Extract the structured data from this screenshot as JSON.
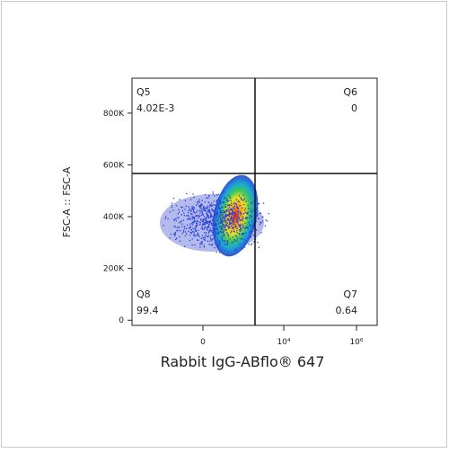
{
  "chart_data": {
    "type": "density-scatter",
    "x_label": "Rabbit IgG-ABflo® 647",
    "y_label": "FSC-A :: FSC-A",
    "xscale": "biexponential",
    "xlim": [
      -5350,
      3700000
    ],
    "xticks": [
      0,
      {
        "value": 10000,
        "label": "10⁴"
      },
      {
        "value": 1000000,
        "label": "10⁶"
      }
    ],
    "ylim": [
      -20000,
      935000
    ],
    "yticks": [
      0,
      {
        "value": 200000,
        "label": "200K"
      },
      {
        "value": 400000,
        "label": "400K"
      },
      {
        "value": 600000,
        "label": "600K"
      },
      {
        "value": 800000,
        "label": "800K"
      }
    ],
    "gate": {
      "x": 1620,
      "y": 567000
    },
    "quadrants": {
      "names": [
        "Q5",
        "Q6",
        "Q7",
        "Q8"
      ],
      "values": [
        0.00402,
        0,
        0.64,
        99.4
      ],
      "value_labels": [
        "4.02E-3",
        "0",
        "0.64",
        "99.4"
      ]
    }
  }
}
